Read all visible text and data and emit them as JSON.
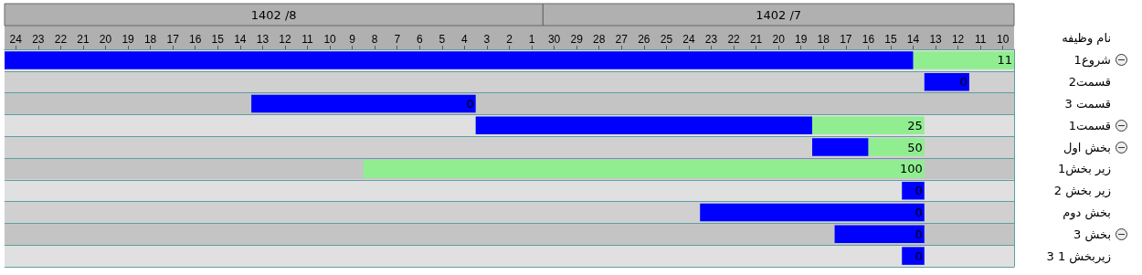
{
  "chart_data": {
    "type": "bar",
    "orientation": "horizontal",
    "ylabel": "نام وظیفه",
    "annotations": [
      "1402 /8",
      "1402 /7",
      {
        "text": "11",
        "x": 9.5,
        "y": "شروع1"
      },
      {
        "text": "0",
        "x": 11.5,
        "y": "قسمت2"
      },
      {
        "text": "0",
        "x": 33.5,
        "y": "قسمت 3"
      },
      {
        "text": "25",
        "x": 13.5,
        "y": "قسمت1"
      },
      {
        "text": "50",
        "x": 13.5,
        "y": "بخش اول"
      },
      {
        "text": "100",
        "x": 13.5,
        "y": "زیر بخش1"
      },
      {
        "text": "0",
        "x": 13.5,
        "y": "زیر بخش 2"
      },
      {
        "text": "0",
        "x": 13.5,
        "y": "بخش دوم"
      },
      {
        "text": "0",
        "x": 13.5,
        "y": "بخش 3"
      },
      {
        "text": "0",
        "x": 13.5,
        "y": "زیربخش 1 3"
      }
    ],
    "categories": [
      "شروع1",
      "قسمت2",
      "قسمت 3",
      "قسمت1",
      "بخش اول",
      "زیر بخش1",
      "زیر بخش 2",
      "بخش دوم",
      "بخش 3",
      "زیربخش 1 3"
    ],
    "series": [
      {
        "color": "#90ee90",
        "base": [
          9.5,
          null,
          null,
          13.5,
          13.5,
          13.5,
          null,
          null,
          null,
          null
        ],
        "values": [
          4.5,
          null,
          null,
          5,
          2.5,
          25,
          null,
          null,
          null,
          null
        ]
      },
      {
        "color": "#0000ff",
        "base": [
          14,
          11.5,
          33.5,
          18.5,
          16,
          null,
          13.5,
          13.5,
          13.5,
          13.5
        ],
        "values": [
          40.5,
          2,
          10,
          15,
          2.5,
          null,
          1,
          10,
          4,
          1
        ]
      }
    ],
    "xlim": [
      54.5,
      9.5
    ],
    "xticks": [
      10,
      11,
      12,
      13,
      14,
      15,
      16,
      17,
      18,
      19,
      20,
      21,
      22,
      23,
      24,
      25,
      26,
      27,
      28,
      29,
      30
    ],
    "x2lim": [
      24.5,
      -20.5
    ],
    "x2ticks": [
      1,
      2,
      3,
      4,
      5,
      6,
      7,
      8,
      9,
      10,
      11,
      12,
      13,
      14,
      15,
      16,
      17,
      18,
      19,
      20,
      21,
      22,
      23,
      24
    ],
    "grid": "y"
  }
}
